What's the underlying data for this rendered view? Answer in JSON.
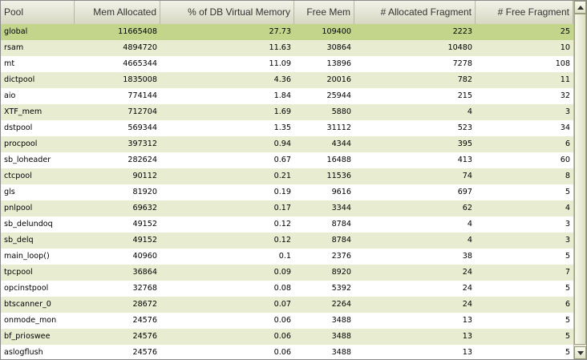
{
  "columns": [
    {
      "label": "Pool",
      "align": "left"
    },
    {
      "label": "Mem Allocated",
      "align": "right"
    },
    {
      "label": "% of DB Virtual Memory",
      "align": "right"
    },
    {
      "label": "Free Mem",
      "align": "right"
    },
    {
      "label": "# Allocated Fragment",
      "align": "right"
    },
    {
      "label": "# Free Fragment",
      "align": "right"
    }
  ],
  "rows": [
    [
      "global",
      "11665408",
      "27.73",
      "109400",
      "2223",
      "25"
    ],
    [
      "rsam",
      "4894720",
      "11.63",
      "30864",
      "10480",
      "10"
    ],
    [
      "mt",
      "4665344",
      "11.09",
      "13896",
      "7278",
      "108"
    ],
    [
      "dictpool",
      "1835008",
      "4.36",
      "20016",
      "782",
      "11"
    ],
    [
      "aio",
      "774144",
      "1.84",
      "25944",
      "215",
      "32"
    ],
    [
      "XTF_mem",
      "712704",
      "1.69",
      "5880",
      "4",
      "3"
    ],
    [
      "dstpool",
      "569344",
      "1.35",
      "31112",
      "523",
      "34"
    ],
    [
      "procpool",
      "397312",
      "0.94",
      "4344",
      "395",
      "6"
    ],
    [
      "sb_loheader",
      "282624",
      "0.67",
      "16488",
      "413",
      "60"
    ],
    [
      "ctcpool",
      "90112",
      "0.21",
      "11536",
      "74",
      "8"
    ],
    [
      "gls",
      "81920",
      "0.19",
      "9616",
      "697",
      "5"
    ],
    [
      "pnlpool",
      "69632",
      "0.17",
      "3344",
      "62",
      "4"
    ],
    [
      "sb_delundoq",
      "49152",
      "0.12",
      "8784",
      "4",
      "3"
    ],
    [
      "sb_delq",
      "49152",
      "0.12",
      "8784",
      "4",
      "3"
    ],
    [
      "main_loop()",
      "40960",
      "0.1",
      "2376",
      "38",
      "5"
    ],
    [
      "tpcpool",
      "36864",
      "0.09",
      "8920",
      "24",
      "7"
    ],
    [
      "opcinstpool",
      "32768",
      "0.08",
      "5392",
      "24",
      "5"
    ],
    [
      "btscanner_0",
      "28672",
      "0.07",
      "2264",
      "24",
      "6"
    ],
    [
      "onmode_mon",
      "24576",
      "0.06",
      "3488",
      "13",
      "5"
    ],
    [
      "bf_prioswee",
      "24576",
      "0.06",
      "3488",
      "13",
      "5"
    ],
    [
      "aslogflush",
      "24576",
      "0.06",
      "3488",
      "13",
      "5"
    ]
  ],
  "selected_row": 0,
  "icons": {
    "scroll_up": "scroll-up-arrow-icon",
    "scroll_down": "scroll-down-arrow-icon"
  },
  "colors": {
    "selected_row": "#c2d58b",
    "alt_row": "#e8edd2",
    "header": "#d6d8c2"
  }
}
